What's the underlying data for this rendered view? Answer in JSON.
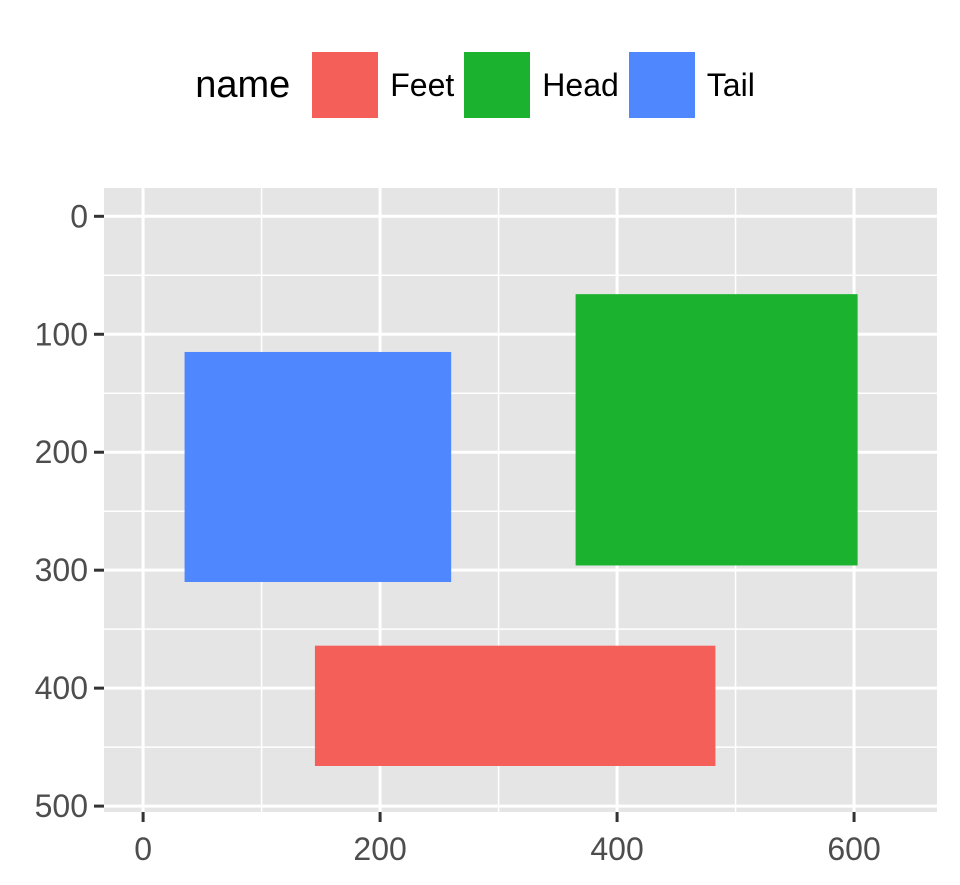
{
  "chart_data": {
    "type": "rect",
    "legend": {
      "title": "name",
      "position": "top",
      "entries": [
        {
          "label": "Feet",
          "color": "#F46059"
        },
        {
          "label": "Head",
          "color": "#1AB22F"
        },
        {
          "label": "Tail",
          "color": "#4F87FE"
        }
      ]
    },
    "series": [
      {
        "name": "Tail",
        "xmin": 35,
        "xmax": 260,
        "ymin": 115,
        "ymax": 310,
        "color": "#4F87FE"
      },
      {
        "name": "Head",
        "xmin": 365,
        "xmax": 603,
        "ymin": 66,
        "ymax": 296,
        "color": "#1AB22F"
      },
      {
        "name": "Feet",
        "xmin": 145,
        "xmax": 483,
        "ymin": 364,
        "ymax": 466,
        "color": "#F46059"
      }
    ],
    "xlim": [
      -33,
      670
    ],
    "ylim": [
      -24,
      505
    ],
    "y_reversed": true,
    "x_ticks": [
      0,
      200,
      400,
      600
    ],
    "y_ticks": [
      0,
      100,
      200,
      300,
      400,
      500
    ],
    "x_tick_labels": [
      "0",
      "200",
      "400",
      "600"
    ],
    "y_tick_labels": [
      "0",
      "100",
      "200",
      "300",
      "400",
      "500"
    ],
    "grid": true,
    "panel_background": "#E5E5E5",
    "grid_color": "#FFFFFF"
  }
}
